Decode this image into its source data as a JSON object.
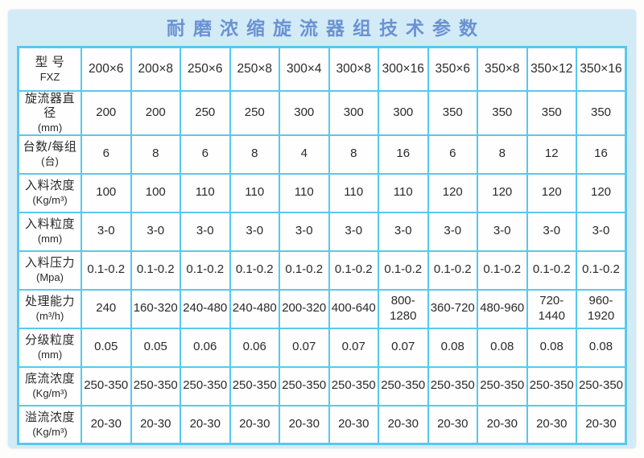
{
  "title": "耐磨浓缩旋流器组技术参数",
  "colors": {
    "panel_bg": "#d2ebf7",
    "table_border": "#58c8ef",
    "title_text": "#6b92d2",
    "cell_bg": "#fefefe",
    "cell_text": "#2a2a2a"
  },
  "table": {
    "header": {
      "label": "型 号",
      "sub": "FXZ"
    },
    "models": [
      "200×6",
      "200×8",
      "250×6",
      "250×8",
      "300×4",
      "300×8",
      "300×16",
      "350×6",
      "350×8",
      "350×12",
      "350×16"
    ],
    "rows": [
      {
        "label": "旋流器直径",
        "unit": "(mm)",
        "values": [
          "200",
          "200",
          "250",
          "250",
          "300",
          "300",
          "300",
          "350",
          "350",
          "350",
          "350"
        ]
      },
      {
        "label": "台数/每组",
        "unit": "(台)",
        "values": [
          "6",
          "8",
          "6",
          "8",
          "4",
          "8",
          "16",
          "6",
          "8",
          "12",
          "16"
        ]
      },
      {
        "label": "入料浓度",
        "unit": "(Kg/m³)",
        "values": [
          "100",
          "100",
          "110",
          "110",
          "110",
          "110",
          "110",
          "120",
          "120",
          "120",
          "120"
        ]
      },
      {
        "label": "入料粒度",
        "unit": "(mm)",
        "values": [
          "3-0",
          "3-0",
          "3-0",
          "3-0",
          "3-0",
          "3-0",
          "3-0",
          "3-0",
          "3-0",
          "3-0",
          "3-0"
        ]
      },
      {
        "label": "入料压力",
        "unit": "(Mpa)",
        "values": [
          "0.1-0.2",
          "0.1-0.2",
          "0.1-0.2",
          "0.1-0.2",
          "0.1-0.2",
          "0.1-0.2",
          "0.1-0.2",
          "0.1-0.2",
          "0.1-0.2",
          "0.1-0.2",
          "0.1-0.2"
        ]
      },
      {
        "label": "处理能力",
        "unit": "(m³/h)",
        "values": [
          "240",
          "160-320",
          "240-480",
          "240-480",
          "200-320",
          "400-640",
          "800-1280",
          "360-720",
          "480-960",
          "720-1440",
          "960-1920"
        ]
      },
      {
        "label": "分级粒度",
        "unit": "(mm)",
        "values": [
          "0.05",
          "0.05",
          "0.06",
          "0.06",
          "0.07",
          "0.07",
          "0.07",
          "0.08",
          "0.08",
          "0.08",
          "0.08"
        ]
      },
      {
        "label": "底流浓度",
        "unit": "(Kg/m³)",
        "values": [
          "250-350",
          "250-350",
          "250-350",
          "250-350",
          "250-350",
          "250-350",
          "250-350",
          "250-350",
          "250-350",
          "250-350",
          "250-350"
        ]
      },
      {
        "label": "溢流浓度",
        "unit": "(Kg/m³)",
        "values": [
          "20-30",
          "20-30",
          "20-30",
          "20-30",
          "20-30",
          "20-30",
          "20-30",
          "20-30",
          "20-30",
          "20-30",
          "20-30"
        ]
      }
    ]
  }
}
